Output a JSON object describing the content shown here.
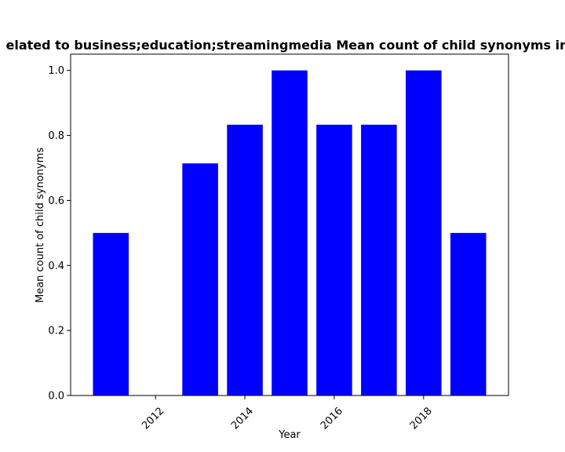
{
  "chart_data": {
    "type": "bar",
    "title": "Mean count of child synonyms in papers related to business;education;streamingmedia Mean count of child synonyms in",
    "title_visible": "elated to business;education;streamingmedia Mean count of child synonyms in",
    "xlabel": "Year",
    "ylabel": "Mean count of child synonyms",
    "x": [
      2011,
      2012,
      2013,
      2014,
      2015,
      2016,
      2017,
      2018,
      2019
    ],
    "values": [
      0.5,
      0.0,
      0.714,
      0.833,
      1.0,
      0.833,
      0.833,
      1.0,
      0.5
    ],
    "xlim": [
      2010.1,
      2019.9
    ],
    "ylim": [
      0.0,
      1.05
    ],
    "xticks": [
      2012,
      2014,
      2016,
      2018
    ],
    "xtick_labels": [
      "2012",
      "2014",
      "2016",
      "2018"
    ],
    "yticks": [
      0.0,
      0.2,
      0.4,
      0.6,
      0.8,
      1.0
    ],
    "ytick_labels": [
      "0.0",
      "0.2",
      "0.4",
      "0.6",
      "0.8",
      "1.0"
    ],
    "bar_color": "#0000ff",
    "grid": false,
    "legend": "none"
  }
}
